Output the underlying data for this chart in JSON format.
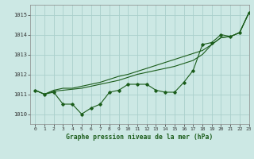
{
  "title": "Graphe pression niveau de la mer (hPa)",
  "bg_color": "#cce8e4",
  "grid_color": "#aacfcb",
  "line_color": "#1a5c1a",
  "xlim": [
    -0.5,
    23
  ],
  "ylim": [
    1009.5,
    1015.5
  ],
  "yticks": [
    1010,
    1011,
    1012,
    1013,
    1014,
    1015
  ],
  "xticks": [
    0,
    1,
    2,
    3,
    4,
    5,
    6,
    7,
    8,
    9,
    10,
    11,
    12,
    13,
    14,
    15,
    16,
    17,
    18,
    19,
    20,
    21,
    22,
    23
  ],
  "series1_x": [
    0,
    1,
    2,
    3,
    4,
    5,
    6,
    7,
    8,
    9,
    10,
    11,
    12,
    13,
    14,
    15,
    16,
    17,
    18,
    19,
    20,
    21,
    22,
    23
  ],
  "series1_y": [
    1011.2,
    1011.0,
    1011.1,
    1010.5,
    1010.5,
    1010.0,
    1010.3,
    1010.5,
    1011.1,
    1011.2,
    1011.5,
    1011.5,
    1011.5,
    1011.2,
    1011.1,
    1011.1,
    1011.6,
    1012.2,
    1013.5,
    1013.6,
    1014.0,
    1013.9,
    1014.1,
    1015.1
  ],
  "series2_x": [
    0,
    1,
    2,
    3,
    4,
    5,
    6,
    7,
    8,
    9,
    10,
    11,
    12,
    13,
    14,
    15,
    16,
    17,
    18,
    19,
    20,
    21,
    22,
    23
  ],
  "series2_y": [
    1011.2,
    1011.0,
    1011.2,
    1011.3,
    1011.3,
    1011.4,
    1011.5,
    1011.6,
    1011.75,
    1011.9,
    1012.0,
    1012.15,
    1012.3,
    1012.45,
    1012.6,
    1012.75,
    1012.9,
    1013.05,
    1013.2,
    1013.5,
    1013.85,
    1013.9,
    1014.1,
    1015.1
  ],
  "series3_x": [
    0,
    1,
    2,
    3,
    4,
    5,
    6,
    7,
    8,
    9,
    10,
    11,
    12,
    13,
    14,
    15,
    16,
    17,
    18,
    19,
    20,
    21,
    22,
    23
  ],
  "series3_y": [
    1011.2,
    1011.0,
    1011.15,
    1011.2,
    1011.25,
    1011.3,
    1011.4,
    1011.5,
    1011.6,
    1011.7,
    1011.85,
    1012.0,
    1012.1,
    1012.2,
    1012.3,
    1012.4,
    1012.55,
    1012.7,
    1013.0,
    1013.5,
    1013.85,
    1013.9,
    1014.1,
    1015.1
  ]
}
